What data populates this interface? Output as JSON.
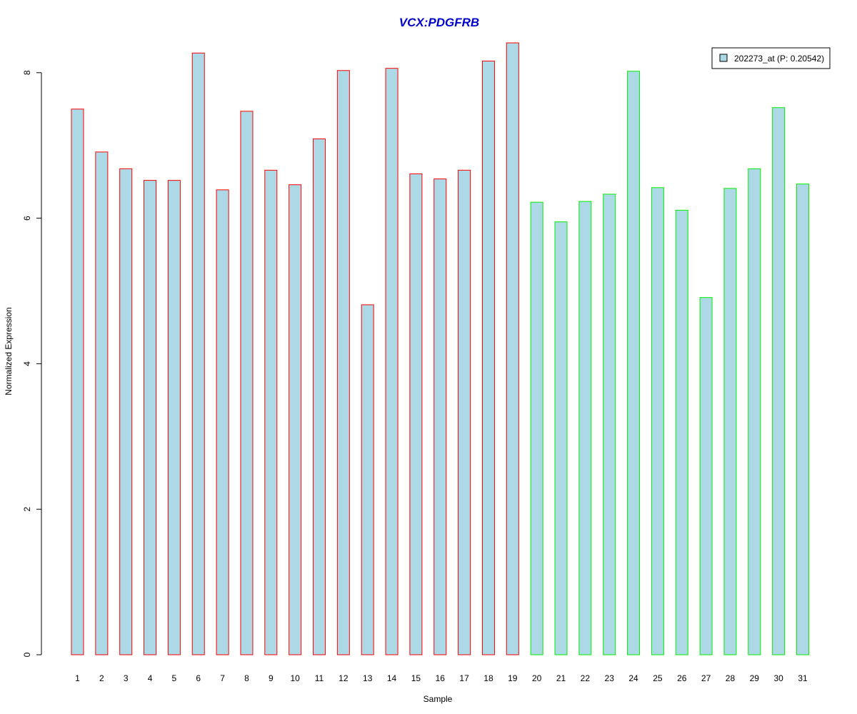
{
  "chart_data": {
    "type": "bar",
    "title": "VCX:PDGFRB",
    "xlabel": "Sample",
    "ylabel": "Normalized Expression",
    "categories": [
      "1",
      "2",
      "3",
      "4",
      "5",
      "6",
      "7",
      "8",
      "9",
      "10",
      "11",
      "12",
      "13",
      "14",
      "15",
      "16",
      "17",
      "18",
      "19",
      "20",
      "21",
      "22",
      "23",
      "24",
      "25",
      "26",
      "27",
      "28",
      "29",
      "30",
      "31"
    ],
    "series": [
      {
        "name": "202273_at (P: 0.20542)",
        "values": [
          7.5,
          6.91,
          6.68,
          6.52,
          6.52,
          8.27,
          6.39,
          7.47,
          6.66,
          6.46,
          7.09,
          8.03,
          4.81,
          8.06,
          6.61,
          6.54,
          6.66,
          8.16,
          8.41,
          6.22,
          5.95,
          6.23,
          6.33,
          8.02,
          6.42,
          6.11,
          4.91,
          6.41,
          6.68,
          7.52,
          6.47
        ]
      }
    ],
    "group_outline_colors": [
      "#ff0000",
      "#ff0000",
      "#ff0000",
      "#ff0000",
      "#ff0000",
      "#ff0000",
      "#ff0000",
      "#ff0000",
      "#ff0000",
      "#ff0000",
      "#ff0000",
      "#ff0000",
      "#ff0000",
      "#ff0000",
      "#ff0000",
      "#ff0000",
      "#ff0000",
      "#ff0000",
      "#ff0000",
      "#00ee00",
      "#00ee00",
      "#00ee00",
      "#00ee00",
      "#00ee00",
      "#00ee00",
      "#00ee00",
      "#00ee00",
      "#00ee00",
      "#00ee00",
      "#00ee00",
      "#00ee00"
    ],
    "bar_fill_color": "#add8e6",
    "title_color": "#0000cd",
    "yticks": [
      0,
      2,
      4,
      6,
      8
    ],
    "ylim": [
      0,
      8.6
    ],
    "grid": false,
    "legend_position": "top-right"
  }
}
